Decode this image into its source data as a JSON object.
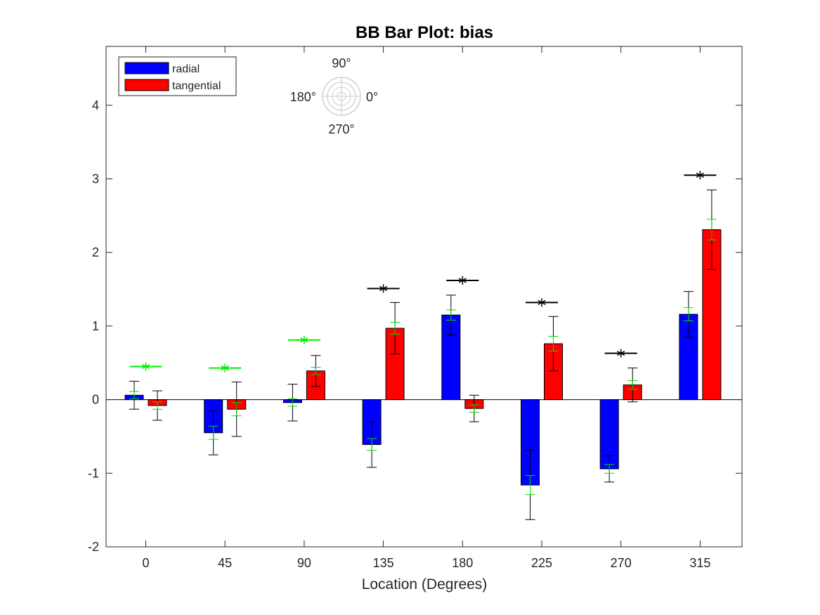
{
  "chart_data": {
    "type": "bar",
    "title": "BB Bar Plot: bias",
    "xlabel": "Location (Degrees)",
    "ylabel": "",
    "categories": [
      "0",
      "45",
      "90",
      "135",
      "180",
      "225",
      "270",
      "315"
    ],
    "ylim": [
      -2,
      4.8
    ],
    "yticks": [
      -2,
      -1,
      0,
      1,
      2,
      3,
      4
    ],
    "ytick_labels": [
      "-2",
      "-1",
      "0",
      "1",
      "2",
      "3",
      "4"
    ],
    "grid": false,
    "legend_position": "top-left",
    "series": [
      {
        "name": "radial",
        "color": "#0000ff",
        "values": [
          0.06,
          -0.45,
          -0.04,
          -0.61,
          1.15,
          -1.16,
          -0.94,
          1.16
        ],
        "error_black": [
          0.19,
          0.3,
          0.25,
          0.31,
          0.27,
          0.47,
          0.18,
          0.31
        ],
        "error_green": [
          0.05,
          0.09,
          0.05,
          0.08,
          0.07,
          0.13,
          0.06,
          0.09
        ]
      },
      {
        "name": "tangential",
        "color": "#ff0000",
        "values": [
          -0.08,
          -0.13,
          0.39,
          0.97,
          -0.12,
          0.76,
          0.2,
          2.31
        ],
        "error_black": [
          0.2,
          0.37,
          0.21,
          0.35,
          0.18,
          0.37,
          0.23,
          0.54
        ],
        "error_green": [
          0.05,
          0.09,
          0.05,
          0.08,
          0.05,
          0.1,
          0.06,
          0.14
        ]
      }
    ],
    "significance_markers": [
      {
        "category": "0",
        "y": 0.45,
        "color": "#00ee00"
      },
      {
        "category": "45",
        "y": 0.43,
        "color": "#00ee00"
      },
      {
        "category": "90",
        "y": 0.81,
        "color": "#00ee00"
      },
      {
        "category": "135",
        "y": 1.51,
        "color": "#000000"
      },
      {
        "category": "180",
        "y": 1.62,
        "color": "#000000"
      },
      {
        "category": "225",
        "y": 1.32,
        "color": "#000000"
      },
      {
        "category": "270",
        "y": 0.63,
        "color": "#000000"
      },
      {
        "category": "315",
        "y": 3.05,
        "color": "#000000"
      }
    ],
    "compass_labels": {
      "top": "90°",
      "left": "180°",
      "right": "0°",
      "bottom": "270°"
    }
  }
}
